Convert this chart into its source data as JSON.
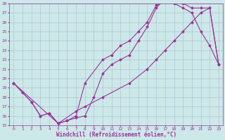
{
  "xlabel": "Windchill (Refroidissement éolien,°C)",
  "xlim": [
    -0.5,
    23.5
  ],
  "ylim": [
    15,
    28
  ],
  "xticks": [
    0,
    1,
    2,
    3,
    4,
    5,
    6,
    7,
    8,
    9,
    10,
    11,
    12,
    13,
    14,
    15,
    16,
    17,
    18,
    19,
    20,
    21,
    22,
    23
  ],
  "yticks": [
    15,
    16,
    17,
    18,
    19,
    20,
    21,
    22,
    23,
    24,
    25,
    26,
    27,
    28
  ],
  "background_color": "#cce8e8",
  "grid_color": "#aabbcc",
  "line_color": "#993399",
  "curve_upper_x": [
    0,
    1,
    2,
    3,
    4,
    5,
    6,
    7,
    8,
    9,
    10,
    11,
    12,
    13,
    14,
    15,
    16,
    17,
    18,
    19,
    20,
    21,
    22,
    23
  ],
  "curve_upper_y": [
    19.5,
    18.5,
    17.5,
    16.0,
    16.3,
    15.2,
    15.5,
    15.8,
    16.0,
    18.0,
    20.5,
    21.5,
    22.0,
    22.5,
    24.0,
    25.5,
    27.5,
    28.5,
    28.5,
    28.0,
    27.5,
    27.5,
    27.5,
    21.5
  ],
  "curve_lower_x": [
    0,
    1,
    2,
    3,
    4,
    5,
    5,
    6,
    7,
    8,
    10,
    11,
    12,
    13,
    14,
    15,
    16,
    17,
    18,
    19,
    20,
    21,
    22,
    23
  ],
  "curve_lower_y": [
    19.5,
    18.5,
    17.5,
    16.0,
    16.3,
    15.2,
    15.2,
    15.5,
    16.0,
    19.5,
    22.0,
    22.5,
    23.5,
    24.0,
    25.0,
    26.0,
    27.8,
    28.2,
    28.0,
    27.5,
    27.0,
    25.0,
    23.5,
    21.5
  ],
  "curve_diag_x": [
    0,
    5,
    7,
    8,
    10,
    13,
    15,
    16,
    17,
    18,
    19,
    20,
    21,
    22,
    23
  ],
  "curve_diag_y": [
    19.5,
    15.2,
    16.5,
    17.0,
    18.0,
    19.5,
    21.0,
    22.0,
    23.0,
    24.0,
    25.0,
    26.0,
    27.0,
    27.5,
    21.5
  ],
  "marker": "D",
  "markersize": 1.5,
  "linewidth": 0.8,
  "tick_fontsize": 4.5,
  "label_fontsize": 5.5
}
